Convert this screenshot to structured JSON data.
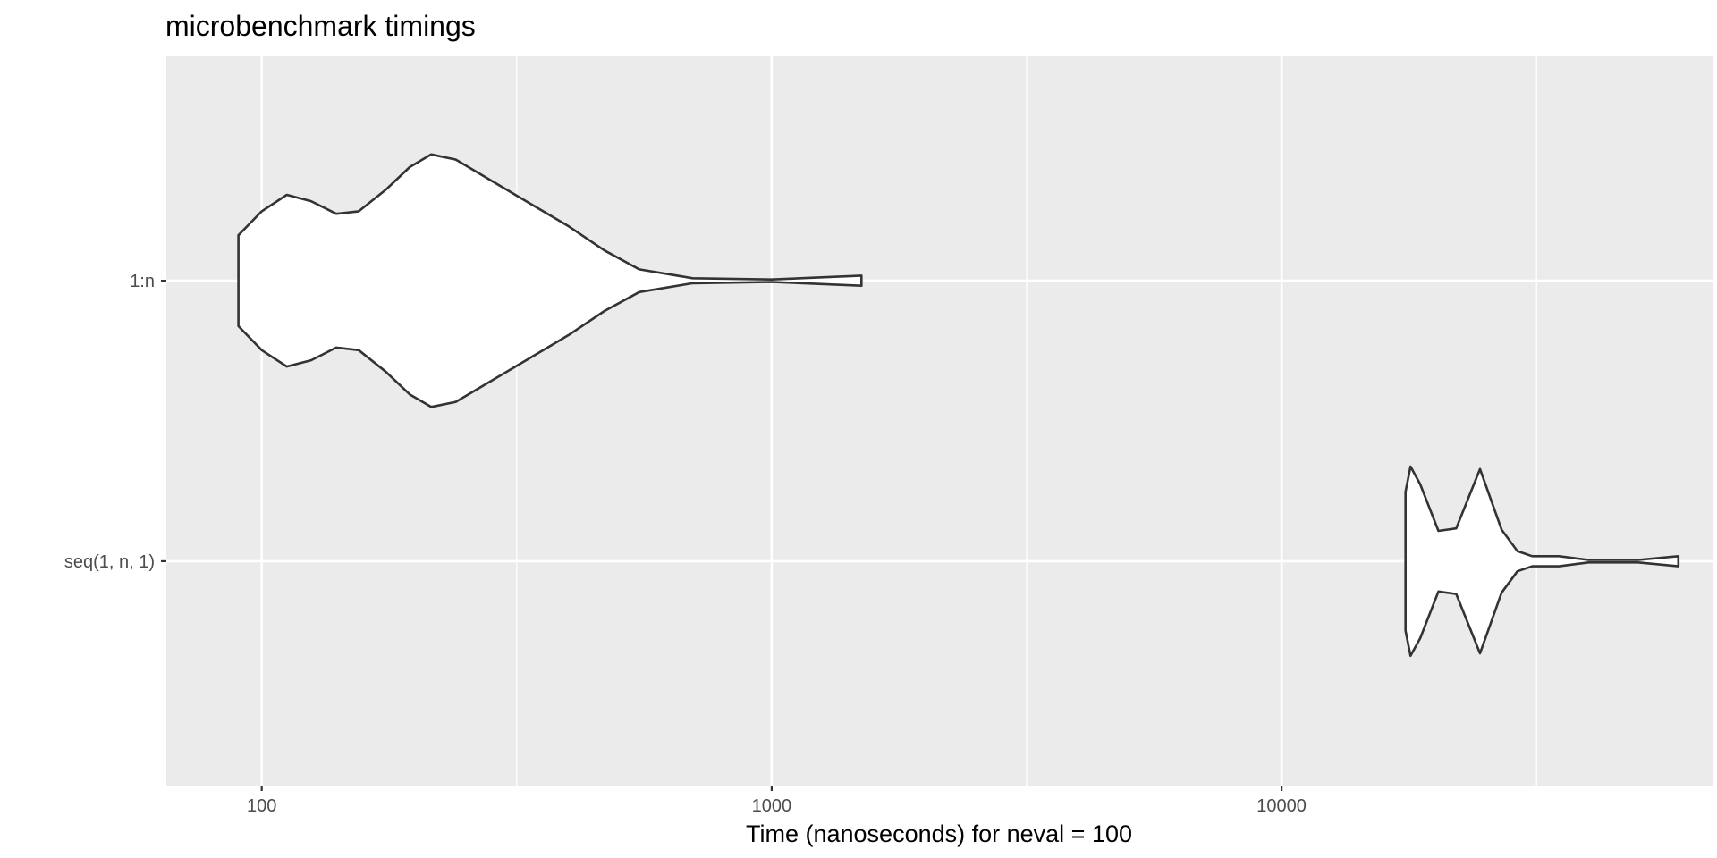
{
  "chart_data": {
    "type": "violin",
    "title": "microbenchmark timings",
    "xlabel": "Time (nanoseconds) for neval = 100",
    "ylabel": "",
    "x_scale": "log10",
    "xlim": [
      65,
      70000
    ],
    "x_ticks": [
      100,
      1000,
      10000
    ],
    "x_tick_labels": [
      "100",
      "1000",
      "10000"
    ],
    "categories": [
      "1:n",
      "seq(1, n, 1)"
    ],
    "grid": true,
    "legend": "none",
    "series": [
      {
        "category": "1:n",
        "min": 90,
        "max": 1500,
        "density": [
          [
            90,
            0.36
          ],
          [
            100,
            0.55
          ],
          [
            112,
            0.68
          ],
          [
            125,
            0.63
          ],
          [
            140,
            0.53
          ],
          [
            155,
            0.55
          ],
          [
            175,
            0.72
          ],
          [
            195,
            0.9
          ],
          [
            215,
            1.0
          ],
          [
            240,
            0.96
          ],
          [
            280,
            0.8
          ],
          [
            330,
            0.63
          ],
          [
            400,
            0.43
          ],
          [
            470,
            0.24
          ],
          [
            550,
            0.09
          ],
          [
            700,
            0.02
          ],
          [
            1000,
            0.01
          ],
          [
            1500,
            0.04
          ]
        ]
      },
      {
        "category": "seq(1, n, 1)",
        "min": 17500,
        "max": 60000,
        "density": [
          [
            17500,
            0.55
          ],
          [
            17900,
            0.75
          ],
          [
            18700,
            0.61
          ],
          [
            20300,
            0.24
          ],
          [
            22000,
            0.26
          ],
          [
            24500,
            0.73
          ],
          [
            27000,
            0.25
          ],
          [
            29000,
            0.08
          ],
          [
            31000,
            0.04
          ],
          [
            35000,
            0.04
          ],
          [
            40000,
            0.01
          ],
          [
            50000,
            0.01
          ],
          [
            60000,
            0.04
          ]
        ]
      }
    ]
  }
}
